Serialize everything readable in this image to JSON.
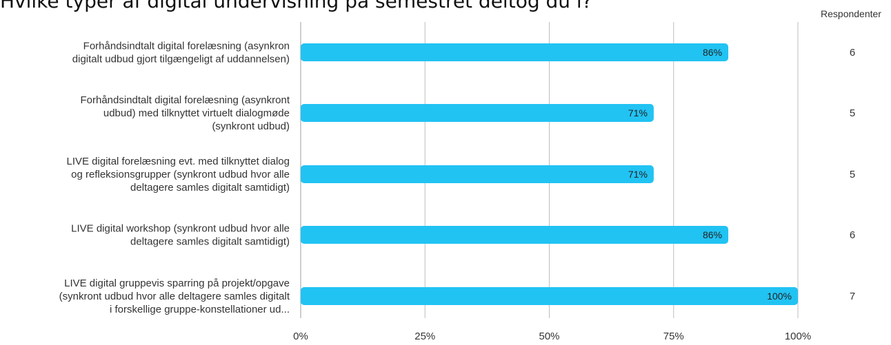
{
  "chart_data": {
    "type": "bar",
    "orientation": "horizontal",
    "title": "Hvilke typer af digital undervisning på semestret deltog du i?",
    "categories": [
      [
        "Forhåndsindtalt digital forelæsning (asynkron",
        "digitalt udbud gjort tilgængeligt af uddannelsen)"
      ],
      [
        "Forhåndsindtalt digital forelæsning (asynkront",
        "udbud) med tilknyttet virtuelt dialogmøde",
        "(synkront udbud)"
      ],
      [
        "LIVE digital forelæsning evt. med tilknyttet dialog",
        "og refleksionsgrupper (synkront udbud hvor alle",
        "deltagere samles digitalt samtidigt)"
      ],
      [
        "LIVE digital workshop (synkront udbud hvor alle",
        "deltagere samles digitalt samtidigt)"
      ],
      [
        "LIVE digital gruppevis sparring på projekt/opgave",
        "(synkront udbud hvor alle deltagere samles digitalt",
        "i forskellige gruppe-konstellationer ud..."
      ]
    ],
    "values": [
      86,
      71,
      71,
      86,
      100
    ],
    "value_labels": [
      "86%",
      "71%",
      "71%",
      "86%",
      "100%"
    ],
    "respondents_header": "Respondenter",
    "respondents": [
      "6",
      "5",
      "5",
      "6",
      "7"
    ],
    "x_ticks": [
      0,
      25,
      50,
      75,
      100
    ],
    "x_tick_labels": [
      "0%",
      "25%",
      "50%",
      "75%",
      "100%"
    ],
    "xlim": [
      0,
      100
    ],
    "grid": true,
    "bar_color": "#21c3f3",
    "grid_color": "#bdbdbd"
  }
}
